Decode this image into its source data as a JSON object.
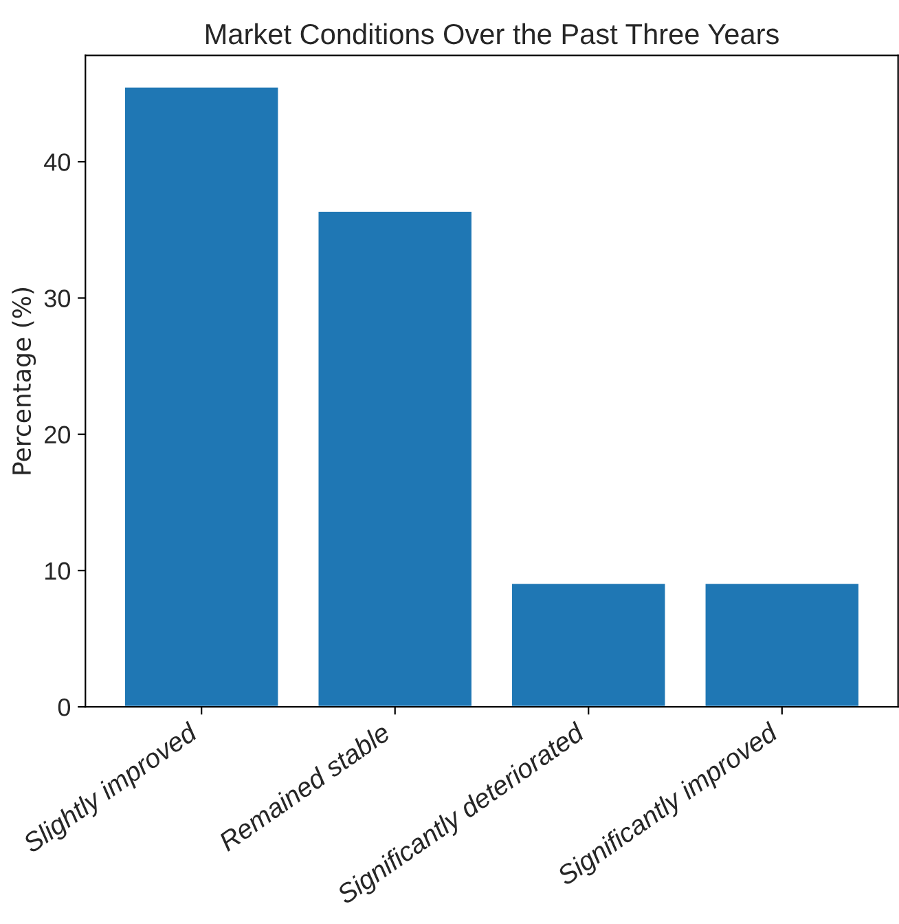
{
  "chart_data": {
    "type": "bar",
    "title": "Market Conditions Over the Past Three Years",
    "ylabel": "Percentage (%)",
    "categories": [
      "Slightly improved",
      "Remained stable",
      "Significantly deteriorated",
      "Significantly improved"
    ],
    "values": [
      45.5,
      36.4,
      9.1,
      9.1
    ],
    "color": "#1f77b4",
    "ylim": [
      0,
      47.8
    ],
    "yticks": [
      0,
      10,
      20,
      30,
      40
    ],
    "grid": false
  }
}
